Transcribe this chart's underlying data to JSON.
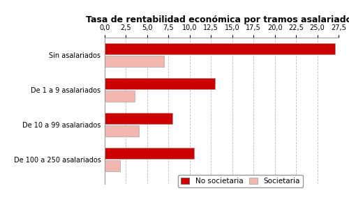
{
  "title": "Tasa de rentabilidad económica por tramos asalariados",
  "categories": [
    "Sin asalariados",
    "De 1 a 9 asalariados",
    "De 10 a 99 asalariados",
    "De 100 a 250 asalariados"
  ],
  "no_societaria": [
    27.1,
    13.0,
    8.0,
    10.5
  ],
  "societaria": [
    7.0,
    3.5,
    4.0,
    1.8
  ],
  "color_no_societaria": "#CC0000",
  "color_societaria": "#F2B8B0",
  "xlim": [
    0,
    27.5
  ],
  "xticks": [
    0.0,
    2.5,
    5.0,
    7.5,
    10.0,
    12.5,
    15.0,
    17.5,
    20.0,
    22.5,
    25.0,
    27.5
  ],
  "xtick_labels": [
    "0,0",
    "2,5",
    "5,0",
    "7,5",
    "10,0",
    "12,5",
    "15,0",
    "17,5",
    "20,0",
    "22,5",
    "25,0",
    "27,5"
  ],
  "legend_no_societaria": "No societaria",
  "legend_societaria": "Societaria",
  "background_color": "#FFFFFF",
  "grid_color": "#BBBBBB",
  "bar_height": 0.32,
  "bar_gap": 0.05,
  "title_fontsize": 9,
  "tick_fontsize": 7,
  "label_fontsize": 7
}
